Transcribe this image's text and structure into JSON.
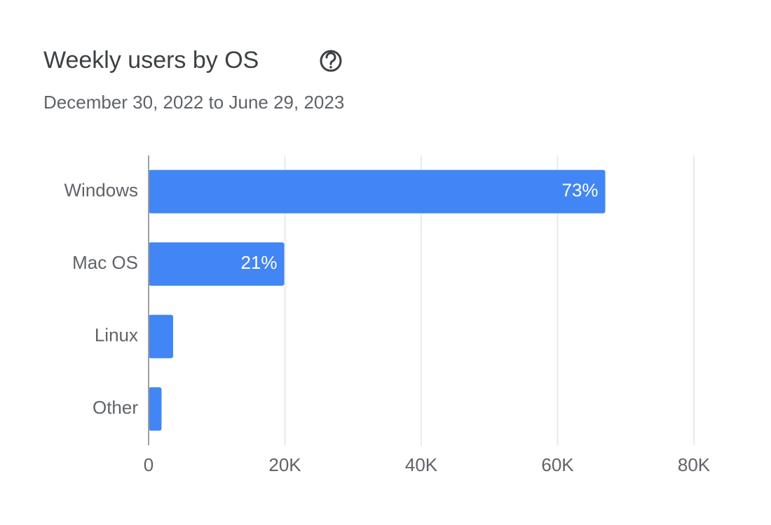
{
  "chart_data": {
    "type": "bar",
    "orientation": "horizontal",
    "title": "Weekly users by OS",
    "subtitle": "December 30, 2022 to June 29, 2023",
    "categories": [
      "Windows",
      "Mac OS",
      "Linux",
      "Other"
    ],
    "values": [
      67000,
      19900,
      3600,
      1900
    ],
    "percent_labels": [
      "73%",
      "21%",
      null,
      null
    ],
    "color": "#4285f4",
    "xlim": [
      0,
      80000
    ],
    "xticks": [
      0,
      {
        "value": 20000,
        "label": "20K"
      },
      {
        "value": 40000,
        "label": "40K"
      },
      {
        "value": 60000,
        "label": "60K"
      },
      {
        "value": 80000,
        "label": "80K"
      }
    ],
    "grid": true
  }
}
